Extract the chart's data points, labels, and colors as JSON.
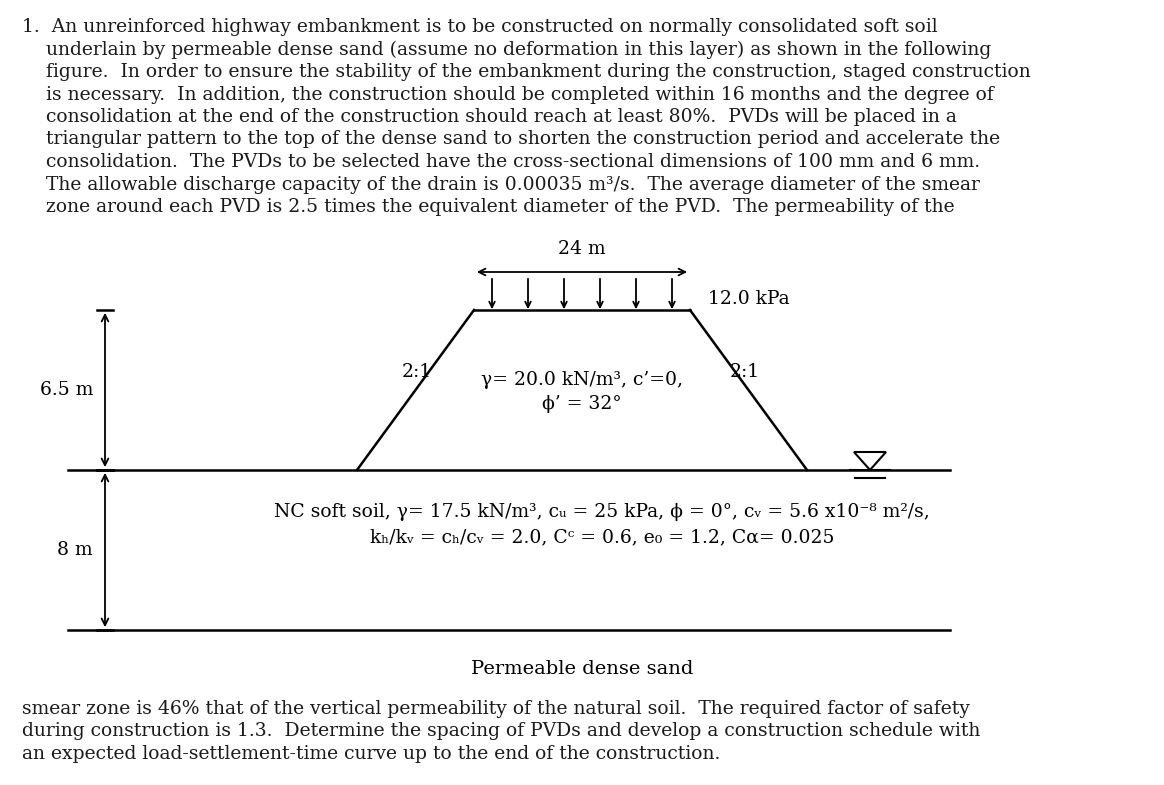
{
  "bg_color": "#ffffff",
  "text_color": "#1a1a2e",
  "fig_width": 11.64,
  "fig_height": 7.85,
  "font_family": "DejaVu Serif",
  "top_text_lines": [
    "1.  An unreinforced highway embankment is to be constructed on normally consolidated soft soil",
    "    underlain by permeable dense sand (assume no deformation in this layer) as shown in the following",
    "    figure.  In order to ensure the stability of the embankment during the construction, staged construction",
    "    is necessary.  In addition, the construction should be completed within 16 months and the degree of",
    "    consolidation at the end of the construction should reach at least 80%.  PVDs will be placed in a",
    "    triangular pattern to the top of the dense sand to shorten the construction period and accelerate the",
    "    consolidation.  The PVDs to be selected have the cross-sectional dimensions of 100 mm and 6 mm.",
    "    The allowable discharge capacity of the drain is 0.00035 m³/s.  The average diameter of the smear",
    "    zone around each PVD is 2.5 times the equivalent diameter of the PVD.  The permeability of the"
  ],
  "bottom_text_lines": [
    "smear zone is 46% that of the vertical permeability of the natural soil.  The required factor of safety",
    "during construction is 1.3.  Determine the spacing of PVDs and develop a construction schedule with",
    "an expected load-settlement-time curve up to the end of the construction."
  ],
  "width_label": "24 m",
  "surcharge_label": "12.0 kPa",
  "height_label": "6.5 m",
  "slope_label": "2:1",
  "embankment_label_line1": "γ= 20.0 kN/m³, c’=0,",
  "embankment_label_line2": "ϕ’ = 32°",
  "soil_label_line1": "NC soft soil, γ= 17.5 kN/m³, c",
  "soil_label_line1b": "u",
  "soil_label_line1c": " = 25 kPa, ϕ = 0°, c",
  "soil_label_line1d": "v",
  "soil_label_line1e": " = 5.6 x10⁻⁸ m²/s,",
  "soil_label_line2": "k",
  "soil_label_line2b": "h",
  "soil_label_line2c": "/k",
  "soil_label_line2d": "v",
  "soil_label_line2e": " = c",
  "soil_label_line2f": "h",
  "soil_label_line2g": "/c",
  "soil_label_line2h": "v",
  "soil_label_line2i": " = 2.0, C",
  "soil_label_line2j": "c",
  "soil_label_line2k": " = 0.6, e",
  "soil_label_line2l": "0",
  "soil_label_line2m": " = 1.2, C",
  "soil_label_line2n": "α",
  "soil_label_line2o": "= 0.025",
  "depth_label": "8 m",
  "bottom_label": "Permeable dense sand"
}
